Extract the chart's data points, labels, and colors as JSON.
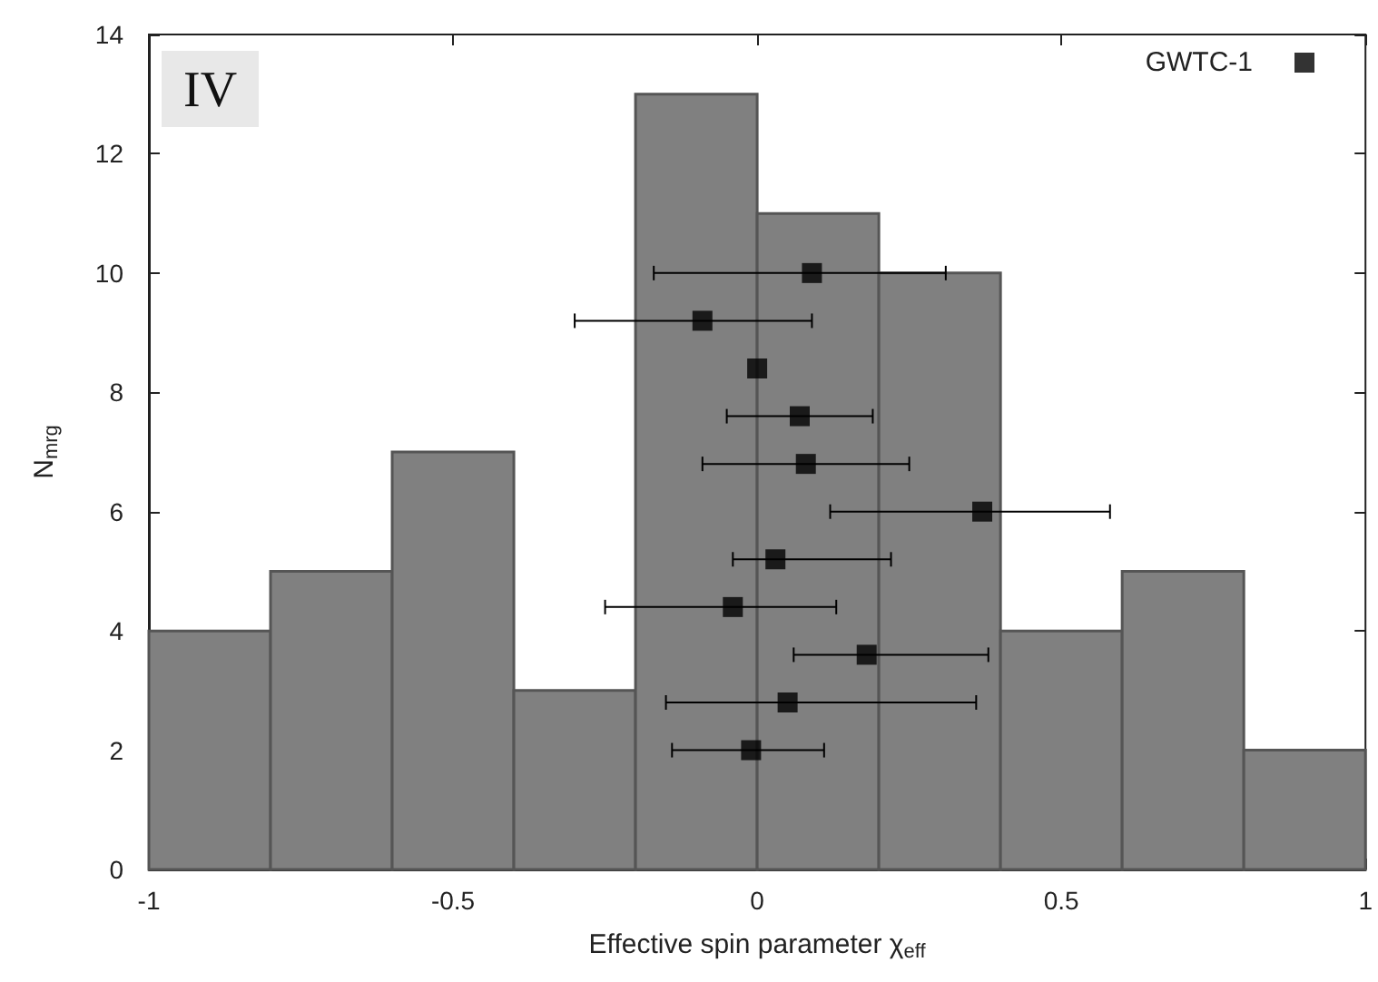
{
  "chart_data": {
    "type": "histogram",
    "xlabel": "Effective spin parameter χ$_{eff}$",
    "ylabel": "N$_{mrg}$",
    "bins": [
      -1,
      -0.8,
      -0.6,
      -0.4,
      -0.2,
      0,
      0.2,
      0.4,
      0.6,
      0.8,
      1
    ],
    "values": [
      4,
      5,
      7,
      3,
      13,
      11,
      10,
      4,
      5,
      2
    ],
    "color": "#808080",
    "series": [
      {
        "type": "scatter",
        "name": "GWTC-1",
        "color": "#000000",
        "x": [
          0.09,
          -0.09,
          0.0,
          0.07,
          0.08,
          0.37,
          0.03,
          -0.04,
          0.18,
          0.05,
          -0.01
        ],
        "values": [
          10,
          9.2,
          8.4,
          7.6,
          6.8,
          6.0,
          5.2,
          4.4,
          3.6,
          2.8,
          2.0
        ],
        "xerrors": [
          [
            -0.17,
            0.31
          ],
          [
            -0.3,
            0.09
          ],
          null,
          [
            -0.05,
            0.19
          ],
          [
            -0.09,
            0.25
          ],
          [
            0.12,
            0.58
          ],
          [
            -0.04,
            0.22
          ],
          [
            -0.25,
            0.13
          ],
          [
            0.06,
            0.38
          ],
          [
            -0.15,
            0.36
          ],
          [
            -0.14,
            0.11
          ]
        ]
      }
    ],
    "annotations": [
      "IV"
    ],
    "xlim": [
      -1,
      1
    ],
    "xticks": [
      -1,
      -0.5,
      0,
      0.5,
      1
    ],
    "ylim": [
      0,
      14
    ],
    "yticks": [
      0,
      2,
      4,
      6,
      8,
      10,
      12,
      14
    ],
    "grid": false,
    "legend": "top right",
    "marker": "square"
  }
}
